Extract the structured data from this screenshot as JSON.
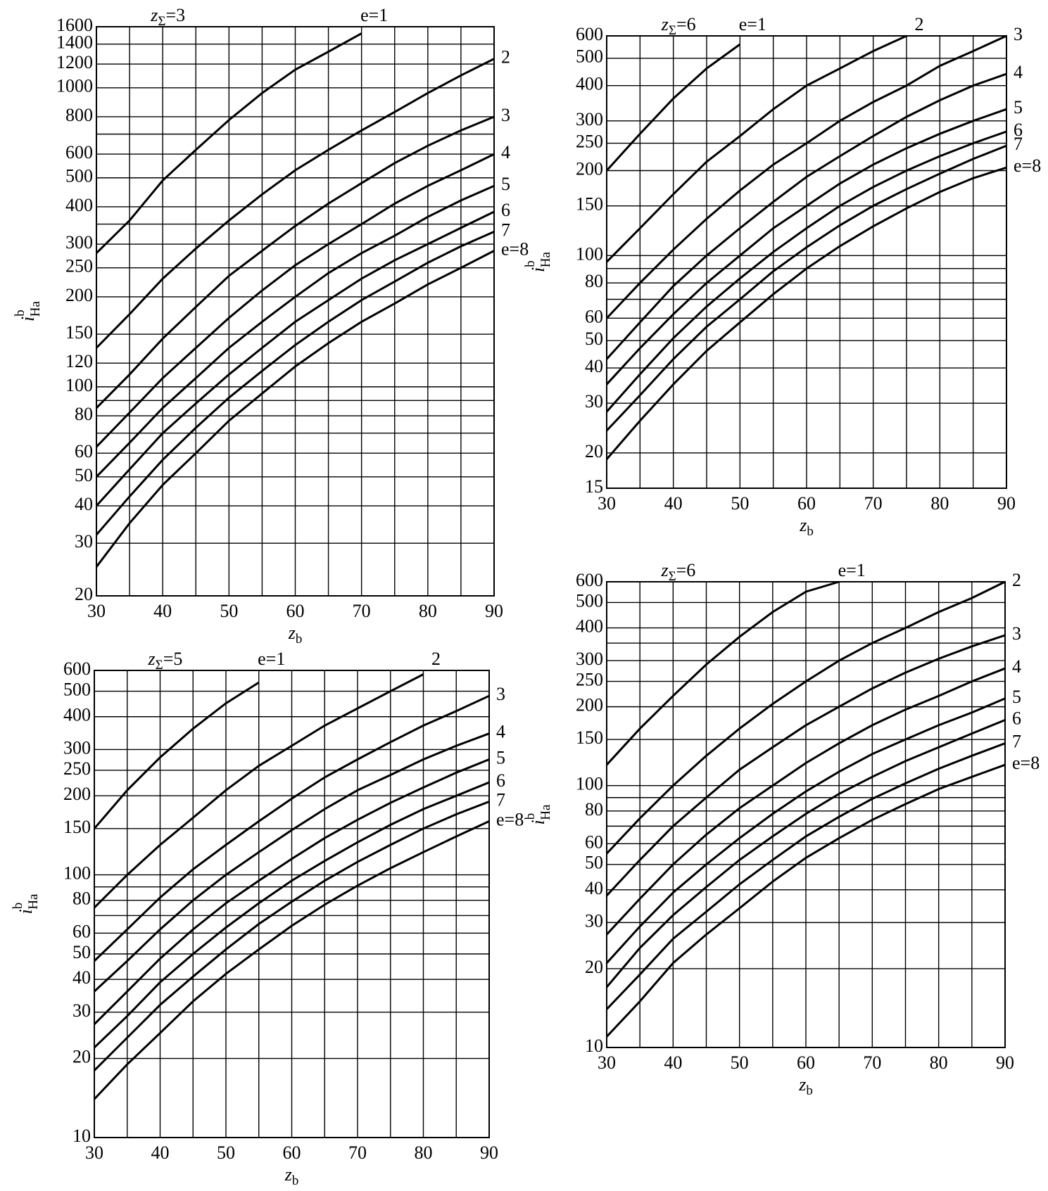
{
  "chart_data": [
    {
      "type": "line",
      "title": {
        "base": "z",
        "sub": "Σ",
        "text": "=3"
      },
      "x_label": {
        "base": "z",
        "sub": "b"
      },
      "y_label": {
        "base": "i",
        "sup": "b",
        "sub": "Ha"
      },
      "yscale": "log",
      "xlim": [
        30,
        90
      ],
      "ylim": [
        20,
        1600
      ],
      "xticks": [
        30,
        40,
        50,
        60,
        70,
        80,
        90
      ],
      "xgrid_minor": [
        35,
        45,
        55,
        65,
        75,
        85
      ],
      "yticks": [
        20,
        30,
        40,
        50,
        60,
        80,
        100,
        120,
        150,
        200,
        250,
        300,
        400,
        500,
        600,
        800,
        1000,
        1200,
        1400,
        1600
      ],
      "ygrid_minor": [
        70,
        90,
        350,
        700
      ],
      "x": [
        30,
        35,
        40,
        45,
        50,
        55,
        60,
        65,
        70,
        75,
        80,
        85,
        90
      ],
      "series": [
        {
          "name": "e=1",
          "color": "#000",
          "values": [
            280,
            360,
            490,
            620,
            780,
            960,
            1150,
            1320,
            1520,
            null,
            null,
            null,
            null
          ]
        },
        {
          "name": "2",
          "color": "#000",
          "values": [
            135,
            175,
            230,
            290,
            360,
            440,
            530,
            620,
            720,
            830,
            960,
            1100,
            1250
          ]
        },
        {
          "name": "3",
          "color": "#000",
          "values": [
            85,
            110,
            145,
            185,
            235,
            285,
            345,
            410,
            480,
            560,
            640,
            720,
            800
          ]
        },
        {
          "name": "4",
          "color": "#000",
          "values": [
            63,
            82,
            107,
            135,
            170,
            210,
            255,
            300,
            350,
            410,
            470,
            530,
            600
          ]
        },
        {
          "name": "5",
          "color": "#000",
          "values": [
            50,
            65,
            85,
            107,
            135,
            165,
            200,
            240,
            280,
            320,
            370,
            420,
            470
          ]
        },
        {
          "name": "6",
          "color": "#000",
          "values": [
            40,
            53,
            70,
            88,
            110,
            135,
            165,
            195,
            230,
            265,
            300,
            340,
            385
          ]
        },
        {
          "name": "7",
          "color": "#000",
          "values": [
            32,
            43,
            57,
            73,
            92,
            113,
            138,
            165,
            195,
            225,
            260,
            295,
            330
          ]
        },
        {
          "name": "e=8",
          "color": "#000",
          "values": [
            25,
            35,
            47,
            60,
            77,
            95,
            117,
            140,
            165,
            190,
            220,
            250,
            285
          ]
        }
      ]
    },
    {
      "type": "line",
      "title": {
        "base": "z",
        "sub": "Σ",
        "text": "=6"
      },
      "x_label": {
        "base": "z",
        "sub": "b"
      },
      "y_label": {
        "base": "i",
        "sup": "b",
        "sub": "Ha"
      },
      "yscale": "log",
      "xlim": [
        30,
        90
      ],
      "ylim": [
        15,
        600
      ],
      "xticks": [
        30,
        40,
        50,
        60,
        70,
        80,
        90
      ],
      "xgrid_minor": [
        35,
        45,
        55,
        65,
        75,
        85
      ],
      "yticks": [
        15,
        20,
        30,
        40,
        50,
        60,
        80,
        100,
        150,
        200,
        250,
        300,
        400,
        500,
        600
      ],
      "ygrid_minor": [
        70,
        90
      ],
      "x": [
        30,
        35,
        40,
        45,
        50,
        55,
        60,
        65,
        70,
        75,
        80,
        85,
        90
      ],
      "series": [
        {
          "name": "e=1",
          "color": "#000",
          "values": [
            200,
            270,
            360,
            460,
            560,
            null,
            null,
            null,
            null,
            null,
            null,
            null,
            null
          ]
        },
        {
          "name": "2",
          "color": "#000",
          "values": [
            95,
            125,
            165,
            215,
            265,
            330,
            400,
            460,
            530,
            600,
            null,
            null,
            null
          ]
        },
        {
          "name": "3",
          "color": "#000",
          "values": [
            60,
            80,
            105,
            135,
            170,
            210,
            250,
            300,
            350,
            400,
            470,
            530,
            600
          ]
        },
        {
          "name": "4",
          "color": "#000",
          "values": [
            43,
            58,
            78,
            100,
            125,
            155,
            190,
            225,
            265,
            310,
            355,
            400,
            440
          ]
        },
        {
          "name": "5",
          "color": "#000",
          "values": [
            35,
            47,
            62,
            80,
            100,
            125,
            150,
            180,
            210,
            240,
            270,
            300,
            330
          ]
        },
        {
          "name": "6",
          "color": "#000",
          "values": [
            28,
            38,
            51,
            66,
            83,
            103,
            125,
            150,
            175,
            200,
            225,
            250,
            275
          ]
        },
        {
          "name": "7",
          "color": "#000",
          "values": [
            24,
            32,
            43,
            56,
            70,
            88,
            107,
            128,
            150,
            172,
            195,
            220,
            245
          ]
        },
        {
          "name": "e=8",
          "color": "#000",
          "values": [
            19,
            26,
            35,
            46,
            58,
            73,
            90,
            108,
            127,
            147,
            168,
            188,
            205
          ]
        }
      ]
    },
    {
      "type": "line",
      "title": {
        "base": "z",
        "sub": "Σ",
        "text": "=5"
      },
      "x_label": {
        "base": "z",
        "sub": "b"
      },
      "y_label": {
        "base": "i",
        "sup": "b",
        "sub": "Ha"
      },
      "yscale": "log",
      "xlim": [
        30,
        90
      ],
      "ylim": [
        10,
        600
      ],
      "xticks": [
        30,
        40,
        50,
        60,
        70,
        80,
        90
      ],
      "xgrid_minor": [
        35,
        45,
        55,
        65,
        75,
        85
      ],
      "yticks": [
        10,
        20,
        30,
        40,
        50,
        60,
        80,
        100,
        150,
        200,
        250,
        300,
        400,
        500,
        600
      ],
      "ygrid_minor": [
        70,
        90
      ],
      "x": [
        30,
        35,
        40,
        45,
        50,
        55,
        60,
        65,
        70,
        75,
        80,
        85,
        90
      ],
      "series": [
        {
          "name": "e=1",
          "color": "#000",
          "values": [
            150,
            210,
            280,
            360,
            450,
            540,
            null,
            null,
            null,
            null,
            null,
            null,
            null
          ]
        },
        {
          "name": "2",
          "color": "#000",
          "values": [
            75,
            100,
            130,
            165,
            210,
            260,
            310,
            370,
            430,
            500,
            580,
            null,
            null
          ]
        },
        {
          "name": "3",
          "color": "#000",
          "values": [
            47,
            62,
            82,
            105,
            130,
            160,
            195,
            235,
            275,
            320,
            370,
            420,
            480
          ]
        },
        {
          "name": "4",
          "color": "#000",
          "values": [
            36,
            47,
            62,
            80,
            100,
            122,
            148,
            178,
            210,
            240,
            275,
            310,
            345
          ]
        },
        {
          "name": "5",
          "color": "#000",
          "values": [
            27,
            36,
            48,
            62,
            78,
            95,
            115,
            138,
            162,
            188,
            215,
            245,
            275
          ]
        },
        {
          "name": "6",
          "color": "#000",
          "values": [
            22,
            29,
            39,
            50,
            63,
            78,
            95,
            113,
            133,
            155,
            178,
            200,
            225
          ]
        },
        {
          "name": "7",
          "color": "#000",
          "values": [
            18,
            24,
            32,
            41,
            52,
            65,
            79,
            95,
            112,
            130,
            150,
            170,
            190
          ]
        },
        {
          "name": "e=8",
          "color": "#000",
          "values": [
            14,
            19,
            25,
            33,
            42,
            52,
            64,
            77,
            91,
            106,
            122,
            140,
            160
          ]
        }
      ]
    },
    {
      "type": "line",
      "title": {
        "base": "z",
        "sub": "Σ",
        "text": "=6"
      },
      "x_label": {
        "base": "z",
        "sub": "b"
      },
      "y_label": {
        "base": "i",
        "sup": "b",
        "sub": "Ha"
      },
      "yscale": "log",
      "xlim": [
        30,
        90
      ],
      "ylim": [
        10,
        600
      ],
      "xticks": [
        30,
        40,
        50,
        60,
        70,
        80,
        90
      ],
      "xgrid_minor": [
        35,
        45,
        55,
        65,
        75,
        85
      ],
      "yticks": [
        10,
        20,
        30,
        40,
        50,
        60,
        80,
        100,
        150,
        200,
        250,
        300,
        400,
        500,
        600
      ],
      "ygrid_minor": [
        70,
        90,
        350
      ],
      "x": [
        30,
        35,
        40,
        45,
        50,
        55,
        60,
        65,
        70,
        75,
        80,
        85,
        90
      ],
      "series": [
        {
          "name": "e=1",
          "color": "#000",
          "values": [
            120,
            165,
            220,
            290,
            370,
            460,
            550,
            600,
            null,
            null,
            null,
            null,
            null
          ]
        },
        {
          "name": "2",
          "color": "#000",
          "values": [
            55,
            75,
            100,
            130,
            165,
            205,
            250,
            300,
            350,
            400,
            460,
            520,
            600
          ]
        },
        {
          "name": "3",
          "color": "#000",
          "values": [
            38,
            52,
            70,
            90,
            115,
            140,
            170,
            200,
            235,
            270,
            305,
            340,
            375
          ]
        },
        {
          "name": "4",
          "color": "#000",
          "values": [
            27,
            37,
            50,
            65,
            82,
            100,
            122,
            145,
            170,
            195,
            220,
            250,
            280
          ]
        },
        {
          "name": "5",
          "color": "#000",
          "values": [
            21,
            29,
            39,
            50,
            63,
            78,
            95,
            113,
            132,
            150,
            170,
            190,
            215
          ]
        },
        {
          "name": "6",
          "color": "#000",
          "values": [
            17,
            24,
            32,
            41,
            52,
            64,
            78,
            93,
            108,
            124,
            140,
            158,
            178
          ]
        },
        {
          "name": "7",
          "color": "#000",
          "values": [
            14,
            19,
            26,
            33,
            42,
            52,
            64,
            76,
            89,
            102,
            116,
            130,
            145
          ]
        },
        {
          "name": "e=8",
          "color": "#000",
          "values": [
            11,
            15,
            21,
            27,
            34,
            43,
            53,
            63,
            74,
            85,
            97,
            108,
            120
          ]
        }
      ]
    }
  ]
}
